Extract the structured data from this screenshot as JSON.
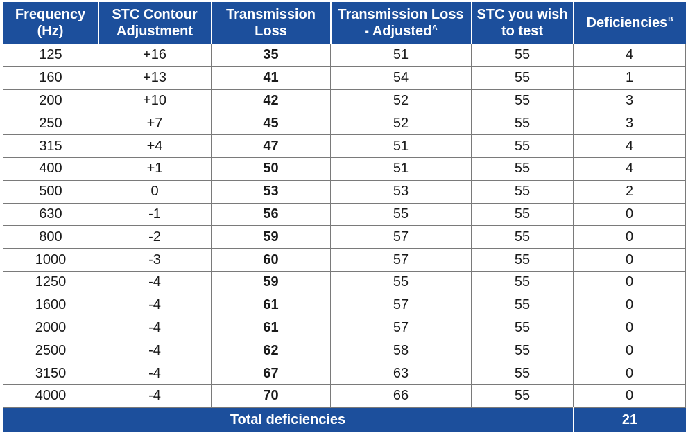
{
  "table": {
    "headers": {
      "frequency": "Frequency (Hz)",
      "adjustment": "STC Contour Adjustment",
      "transmission_loss": "Transmission Loss",
      "tl_adjusted": "Transmission Loss - Adjusted",
      "tl_adjusted_note": "A",
      "stc_test": "STC you wish to test",
      "deficiencies": "Deficiencies",
      "deficiencies_note": "B"
    },
    "rows": [
      {
        "frequency": "125",
        "adjustment": "+16",
        "transmission_loss": "35",
        "tl_adjusted": "51",
        "stc_test": "55",
        "deficiencies": "4"
      },
      {
        "frequency": "160",
        "adjustment": "+13",
        "transmission_loss": "41",
        "tl_adjusted": "54",
        "stc_test": "55",
        "deficiencies": "1"
      },
      {
        "frequency": "200",
        "adjustment": "+10",
        "transmission_loss": "42",
        "tl_adjusted": "52",
        "stc_test": "55",
        "deficiencies": "3"
      },
      {
        "frequency": "250",
        "adjustment": "+7",
        "transmission_loss": "45",
        "tl_adjusted": "52",
        "stc_test": "55",
        "deficiencies": "3"
      },
      {
        "frequency": "315",
        "adjustment": "+4",
        "transmission_loss": "47",
        "tl_adjusted": "51",
        "stc_test": "55",
        "deficiencies": "4"
      },
      {
        "frequency": "400",
        "adjustment": "+1",
        "transmission_loss": "50",
        "tl_adjusted": "51",
        "stc_test": "55",
        "deficiencies": "4"
      },
      {
        "frequency": "500",
        "adjustment": "0",
        "transmission_loss": "53",
        "tl_adjusted": "53",
        "stc_test": "55",
        "deficiencies": "2"
      },
      {
        "frequency": "630",
        "adjustment": "-1",
        "transmission_loss": "56",
        "tl_adjusted": "55",
        "stc_test": "55",
        "deficiencies": "0"
      },
      {
        "frequency": "800",
        "adjustment": "-2",
        "transmission_loss": "59",
        "tl_adjusted": "57",
        "stc_test": "55",
        "deficiencies": "0"
      },
      {
        "frequency": "1000",
        "adjustment": "-3",
        "transmission_loss": "60",
        "tl_adjusted": "57",
        "stc_test": "55",
        "deficiencies": "0"
      },
      {
        "frequency": "1250",
        "adjustment": "-4",
        "transmission_loss": "59",
        "tl_adjusted": "55",
        "stc_test": "55",
        "deficiencies": "0"
      },
      {
        "frequency": "1600",
        "adjustment": "-4",
        "transmission_loss": "61",
        "tl_adjusted": "57",
        "stc_test": "55",
        "deficiencies": "0"
      },
      {
        "frequency": "2000",
        "adjustment": "-4",
        "transmission_loss": "61",
        "tl_adjusted": "57",
        "stc_test": "55",
        "deficiencies": "0"
      },
      {
        "frequency": "2500",
        "adjustment": "-4",
        "transmission_loss": "62",
        "tl_adjusted": "58",
        "stc_test": "55",
        "deficiencies": "0"
      },
      {
        "frequency": "3150",
        "adjustment": "-4",
        "transmission_loss": "67",
        "tl_adjusted": "63",
        "stc_test": "55",
        "deficiencies": "0"
      },
      {
        "frequency": "4000",
        "adjustment": "-4",
        "transmission_loss": "70",
        "tl_adjusted": "66",
        "stc_test": "55",
        "deficiencies": "0"
      }
    ],
    "footer": {
      "label": "Total deficiencies",
      "total": "21"
    }
  },
  "colors": {
    "header_bg": "#1c4f9c",
    "header_text": "#ffffff",
    "grid_line": "#7a7a7a"
  }
}
